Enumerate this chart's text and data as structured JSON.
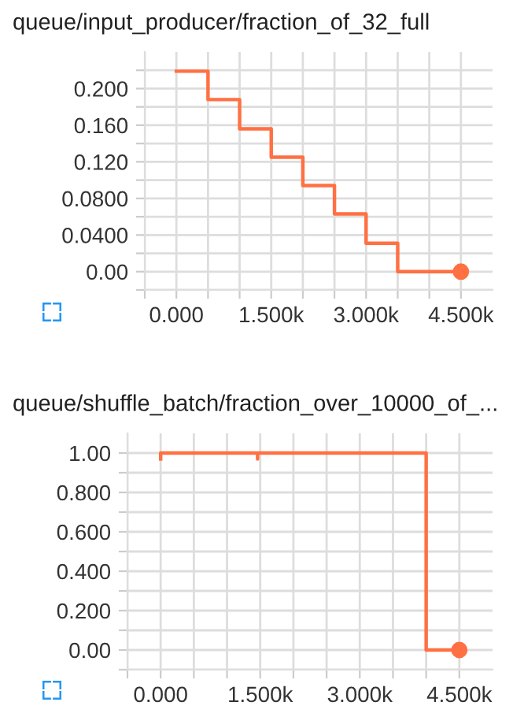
{
  "chart_data": [
    {
      "type": "step",
      "title": "queue/input_producer/fraction_of_32_full",
      "x": [
        0,
        500,
        1000,
        1500,
        2000,
        2500,
        3000,
        3500,
        4500
      ],
      "series": [
        {
          "color": "#ff7043",
          "values": [
            0.219,
            0.188,
            0.156,
            0.125,
            0.094,
            0.063,
            0.031,
            0,
            0
          ]
        },
        {
          "type": "scatter",
          "color": "#ff7043",
          "x": [
            4500
          ],
          "values": [
            0
          ]
        }
      ],
      "xlim": [
        -500,
        5000
      ],
      "xticks": [
        {
          "value": -500,
          "label": null
        },
        {
          "value": 0,
          "label": "0.000"
        },
        {
          "value": 500,
          "label": null
        },
        {
          "value": 1000,
          "label": null
        },
        {
          "value": 1500,
          "label": "1.500k"
        },
        {
          "value": 2000,
          "label": null
        },
        {
          "value": 2500,
          "label": null
        },
        {
          "value": 3000,
          "label": "3.000k"
        },
        {
          "value": 3500,
          "label": null
        },
        {
          "value": 4000,
          "label": null
        },
        {
          "value": 4500,
          "label": "4.500k"
        }
      ],
      "ylim": [
        -0.02,
        0.24
      ],
      "yticks": [
        {
          "value": -0.02,
          "label": null
        },
        {
          "value": 0,
          "label": "0.00"
        },
        {
          "value": 0.02,
          "label": null
        },
        {
          "value": 0.04,
          "label": "0.0400"
        },
        {
          "value": 0.06,
          "label": null
        },
        {
          "value": 0.08,
          "label": "0.0800"
        },
        {
          "value": 0.1,
          "label": null
        },
        {
          "value": 0.12,
          "label": "0.120"
        },
        {
          "value": 0.14,
          "label": null
        },
        {
          "value": 0.16,
          "label": "0.160"
        },
        {
          "value": 0.18,
          "label": null
        },
        {
          "value": 0.2,
          "label": "0.200"
        },
        {
          "value": 0.22,
          "label": null
        }
      ],
      "grid": true
    },
    {
      "type": "line",
      "title": "queue/shuffle_batch/fraction_over_10000_of_...",
      "x": [
        0,
        0,
        1460,
        1460,
        1460,
        4000,
        4000,
        4500
      ],
      "series": [
        {
          "color": "#ff7043",
          "values": [
            0.97,
            1,
            1,
            0.97,
            1,
            1,
            0,
            0
          ]
        },
        {
          "type": "scatter",
          "color": "#ff7043",
          "x": [
            4500
          ],
          "values": [
            0
          ]
        }
      ],
      "xlim": [
        -500,
        5000
      ],
      "xticks": [
        {
          "value": -500,
          "label": null
        },
        {
          "value": 0,
          "label": "0.000"
        },
        {
          "value": 500,
          "label": null
        },
        {
          "value": 1000,
          "label": null
        },
        {
          "value": 1500,
          "label": "1.500k"
        },
        {
          "value": 2000,
          "label": null
        },
        {
          "value": 2500,
          "label": null
        },
        {
          "value": 3000,
          "label": "3.000k"
        },
        {
          "value": 3500,
          "label": null
        },
        {
          "value": 4000,
          "label": null
        },
        {
          "value": 4500,
          "label": "4.500k"
        }
      ],
      "ylim": [
        -0.1,
        1.1
      ],
      "yticks": [
        {
          "value": -0.1,
          "label": null
        },
        {
          "value": 0,
          "label": "0.00"
        },
        {
          "value": 0.1,
          "label": null
        },
        {
          "value": 0.2,
          "label": "0.200"
        },
        {
          "value": 0.3,
          "label": null
        },
        {
          "value": 0.4,
          "label": "0.400"
        },
        {
          "value": 0.5,
          "label": null
        },
        {
          "value": 0.6,
          "label": "0.600"
        },
        {
          "value": 0.7,
          "label": null
        },
        {
          "value": 0.8,
          "label": "0.800"
        },
        {
          "value": 0.9,
          "label": null
        },
        {
          "value": 1,
          "label": "1.00"
        }
      ],
      "grid": true
    }
  ]
}
